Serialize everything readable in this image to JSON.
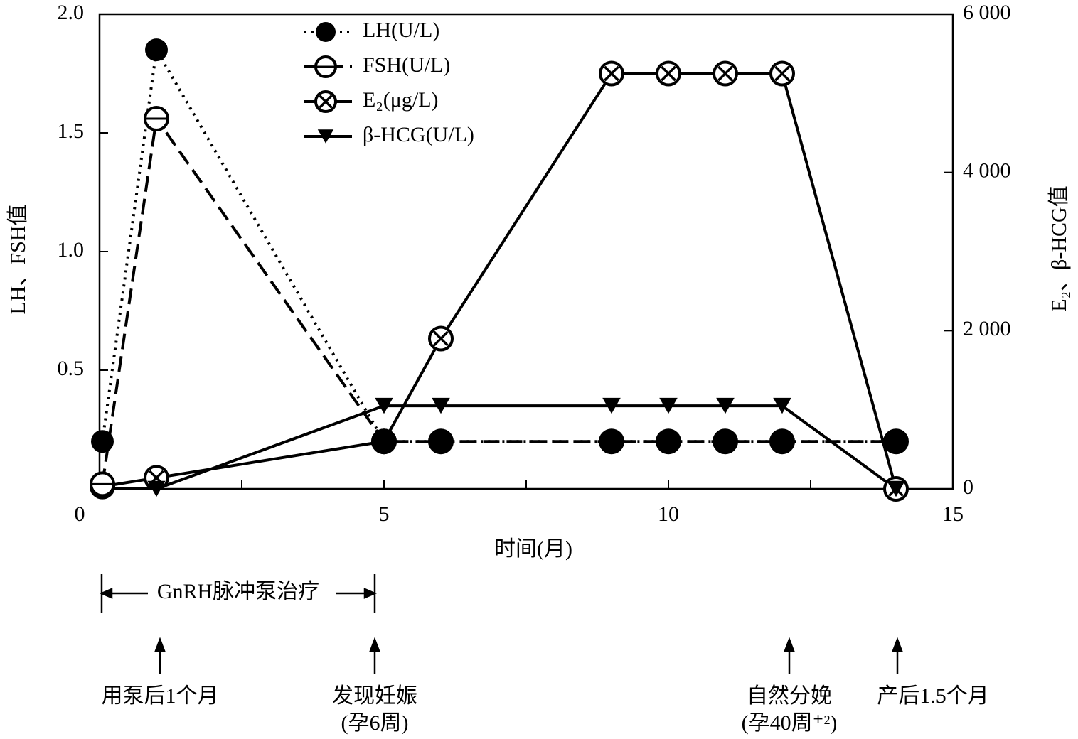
{
  "chart_data": {
    "type": "line",
    "xlabel": "时间(月)",
    "ylabel": "LH、FSH值",
    "y2label": "E₂、β-HCG值",
    "x": [
      0.05,
      1,
      5,
      6,
      9,
      10,
      11,
      12,
      14
    ],
    "series": [
      {
        "name": "LH(U/L)",
        "color": "#000000",
        "dash": "dotted",
        "marker": "filled-circle",
        "values": [
          0.2,
          1.85,
          0.2,
          0.2,
          0.2,
          0.2,
          0.2,
          0.2,
          0.2
        ]
      },
      {
        "name": "FSH(U/L)",
        "color": "#000000",
        "dash": "dashed",
        "marker": "open-circle",
        "values": [
          0.02,
          1.56,
          0.2,
          0.2,
          0.2,
          0.2,
          0.2,
          0.2,
          0.2
        ]
      },
      {
        "name": "E₂(μg/L)",
        "color": "#000000",
        "dash": "solid",
        "marker": "crossed-circle",
        "axis": "y2",
        "values": [
          30,
          140,
          600,
          1900,
          5250,
          5250,
          5250,
          5250,
          0
        ]
      },
      {
        "name": "β-HCG(U/L)",
        "color": "#000000",
        "dash": "solid",
        "marker": "down-triangle",
        "axis": "y2",
        "values": [
          0,
          0,
          1050,
          1050,
          1050,
          1050,
          1050,
          1050,
          0
        ]
      }
    ],
    "xlim": [
      0,
      15
    ],
    "xticks": [
      0,
      5,
      10,
      15
    ],
    "ylim": [
      0,
      2
    ],
    "yticks": [
      {
        "value": 0.5,
        "label": "0.5"
      },
      {
        "value": 1,
        "label": "1.0"
      },
      {
        "value": 1.5,
        "label": "1.5"
      },
      {
        "value": 2,
        "label": "2.0"
      }
    ],
    "y2lim": [
      0,
      6000
    ],
    "y2ticks": [
      0,
      {
        "value": 2000,
        "label": "2 000"
      },
      {
        "value": 4000,
        "label": "4 000"
      },
      {
        "value": 6000,
        "label": "6 000"
      }
    ],
    "legend": "top-center",
    "bracket_label": "GnRH脉冲泵治疗",
    "event_labels": [
      [
        "用泵后1个月"
      ],
      [
        "发现妊娠",
        "(孕6周)"
      ],
      [
        "自然分娩",
        "(孕40周⁺²)"
      ],
      [
        "产后1.5个月"
      ]
    ]
  }
}
